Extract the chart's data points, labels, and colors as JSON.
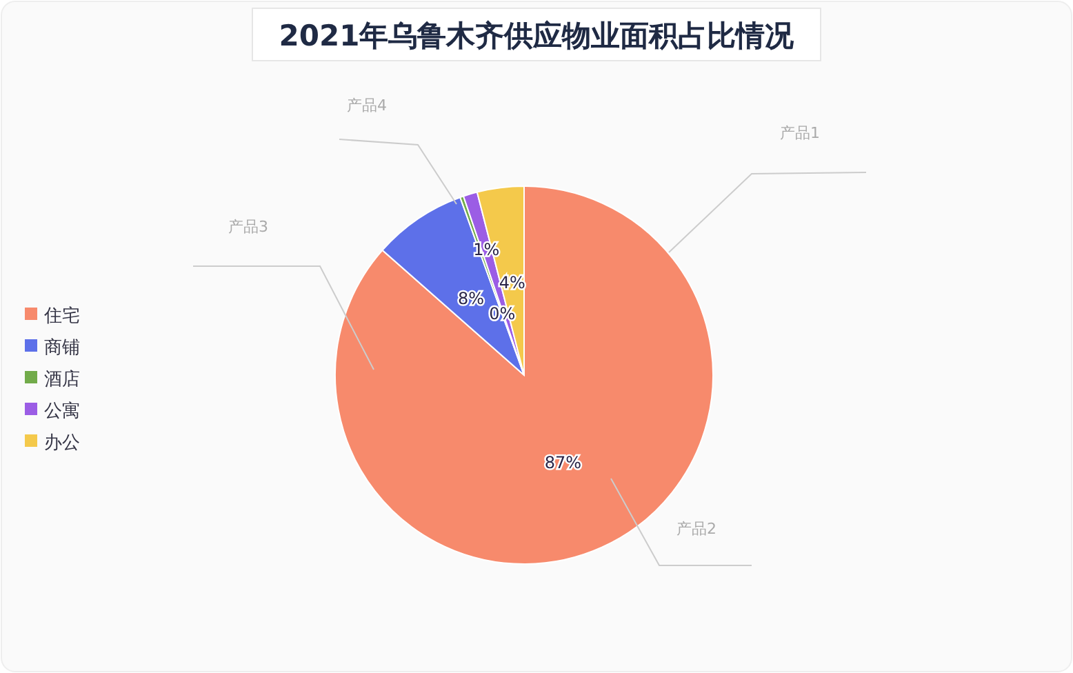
{
  "chart_data": {
    "type": "pie",
    "title": "2021年乌鲁木齐供应物业面积占比情况",
    "categories": [
      "住宅",
      "商铺",
      "酒店",
      "公寓",
      "办公"
    ],
    "values": [
      86.5,
      8,
      0.3,
      1.2,
      4
    ],
    "colors": [
      "#f78a6c",
      "#5d70e9",
      "#72ab4a",
      "#9b5de5",
      "#f4c94b"
    ],
    "value_labels": [
      "87%",
      "8%",
      "0%",
      "1%",
      "4%"
    ],
    "legend": "left",
    "annotations": [
      "产品1",
      "产品2",
      "产品3",
      "产品4"
    ]
  }
}
